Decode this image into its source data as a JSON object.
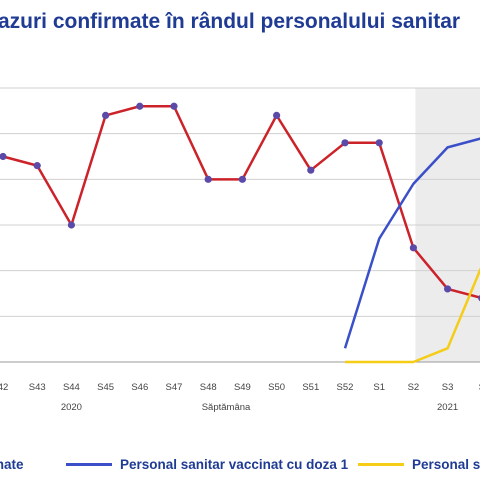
{
  "title": "azuri confirmate în rândul personalului sanitar",
  "colors": {
    "red": "#cc2229",
    "marker": "#5b4aa8",
    "blue": "#3a4fc8",
    "yellow": "#f5cc16",
    "grid": "#d0d0d0",
    "shade": "#ececec"
  },
  "chart_data": {
    "type": "line",
    "title": "azuri confirmate în rândul personalului sanitar",
    "xlabel": "Săptămâna",
    "ylabel": "",
    "categories": [
      "42",
      "S43",
      "S44",
      "S45",
      "S46",
      "S47",
      "S48",
      "S49",
      "S50",
      "S51",
      "S52",
      "S1",
      "S2",
      "S3",
      "S"
    ],
    "year_labels": [
      {
        "label": "2020",
        "at": "S44"
      },
      {
        "label": "2021",
        "at": "S3"
      }
    ],
    "shaded_from": "S2",
    "ylim": [
      0,
      6
    ],
    "grid": true,
    "series": [
      {
        "name": "",
        "color": "#cc2229",
        "markers": true,
        "values": [
          4.5,
          4.3,
          3.0,
          5.4,
          5.6,
          5.6,
          4.0,
          4.0,
          5.4,
          4.2,
          4.8,
          4.8,
          2.5,
          1.6,
          1.4
        ]
      },
      {
        "name": "Personal sanitar vaccinat cu doza 1",
        "color": "#3a4fc8",
        "markers": false,
        "values": [
          null,
          null,
          null,
          null,
          null,
          null,
          null,
          null,
          null,
          null,
          0.3,
          2.7,
          3.9,
          4.7,
          4.9
        ]
      },
      {
        "name": "Personal s",
        "color": "#f5cc16",
        "markers": false,
        "values": [
          null,
          null,
          null,
          null,
          null,
          null,
          null,
          null,
          null,
          null,
          0.0,
          0.0,
          0.0,
          0.3,
          2.1
        ]
      }
    ],
    "legend": [
      {
        "label": "mate",
        "color": "#cc2229"
      },
      {
        "label": "Personal sanitar vaccinat cu doza 1",
        "color": "#3a4fc8"
      },
      {
        "label": "Personal s",
        "color": "#f5cc16"
      }
    ]
  }
}
